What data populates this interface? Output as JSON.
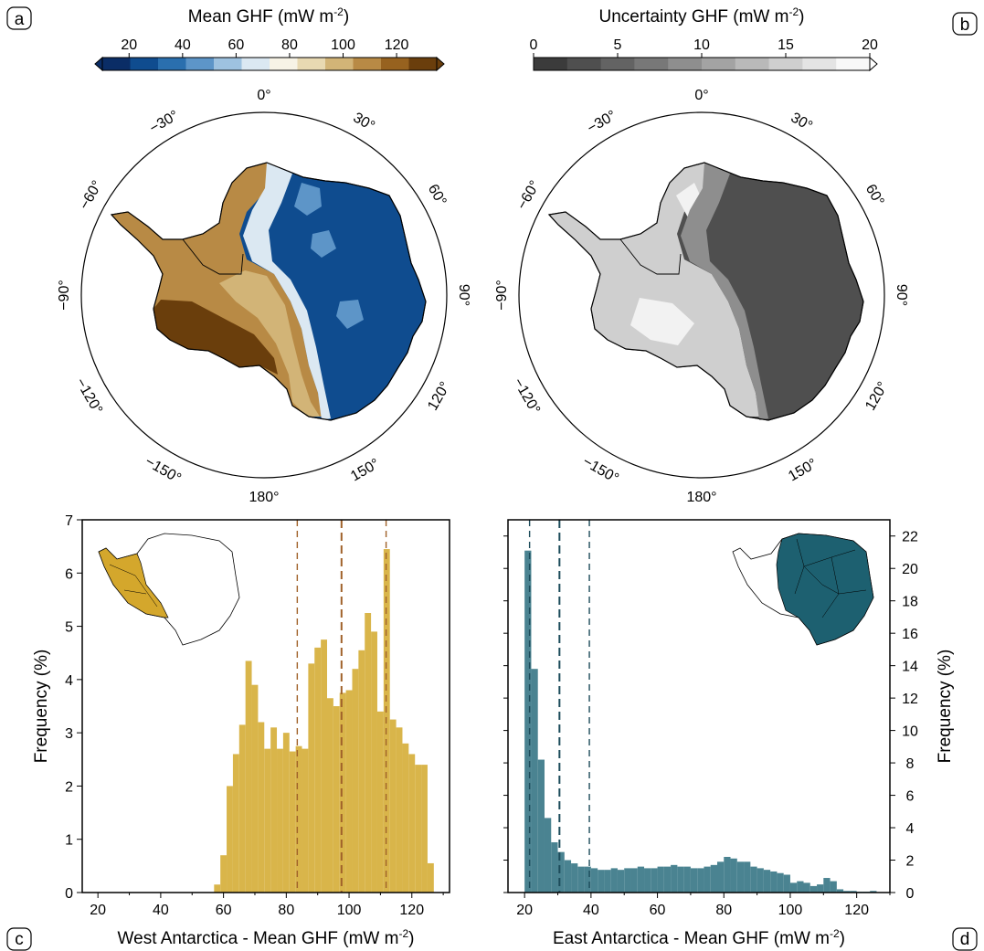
{
  "panels": {
    "a": "a",
    "b": "b",
    "c": "c",
    "d": "d"
  },
  "colorbars": [
    {
      "title": "Mean GHF (mW m",
      "title_sup": "-2",
      "title_end": ")",
      "ticks": [
        "20",
        "40",
        "60",
        "80",
        "100",
        "120"
      ],
      "tick_values": [
        20,
        40,
        60,
        80,
        100,
        120
      ],
      "range": [
        10,
        135
      ],
      "palette": [
        "#0a2d66",
        "#0f4c8f",
        "#2a6fae",
        "#5d95c8",
        "#9ec2e0",
        "#dbe8f2",
        "#f7f3e6",
        "#e8d9b2",
        "#d2b477",
        "#b88a45",
        "#97621f",
        "#6a3e0c"
      ]
    },
    {
      "title": "Uncertainty GHF (mW m",
      "title_sup": "-2",
      "title_end": ")",
      "ticks": [
        "0",
        "5",
        "10",
        "15",
        "20"
      ],
      "tick_values": [
        0,
        5,
        10,
        15,
        20
      ],
      "range": [
        0,
        20
      ],
      "palette": [
        "#3b3b3b",
        "#4f4f4f",
        "#636363",
        "#787878",
        "#8e8e8e",
        "#a3a3a3",
        "#b9b9b9",
        "#cfcfcf",
        "#e4e4e4",
        "#f8f8f8"
      ]
    }
  ],
  "maps": {
    "longitude_labels": [
      "0°",
      "30°",
      "60°",
      "90°",
      "120°",
      "150°",
      "180°",
      "−150°",
      "−120°",
      "−90°",
      "−60°",
      "−30°"
    ]
  },
  "colors": {
    "west_bar": "#d9b54a",
    "west_line": "#a0622a",
    "east_bar": "#4a8391",
    "east_line": "#1c4b5a",
    "west_inset": "#d4a72c",
    "east_inset": "#1d6070"
  },
  "chart_data": [
    {
      "type": "bar",
      "xlabel": "West Antarctica - Mean GHF (mW m",
      "xlabel_sup": "-2",
      "xlabel_end": ")",
      "ylabel": "Frequency (%)",
      "xlim": [
        15,
        132
      ],
      "ylim": [
        0,
        7
      ],
      "xticks": [
        20,
        40,
        60,
        80,
        100,
        120
      ],
      "yticks": [
        0,
        1,
        2,
        3,
        4,
        5,
        6,
        7
      ],
      "bin_width": 2,
      "bins_start": [
        57,
        59,
        61,
        63,
        65,
        67,
        69,
        71,
        73,
        75,
        77,
        79,
        81,
        83,
        85,
        87,
        89,
        91,
        93,
        95,
        97,
        99,
        101,
        103,
        105,
        107,
        109,
        111,
        113,
        115,
        117,
        119,
        121,
        123,
        125,
        127
      ],
      "values": [
        0.15,
        0.7,
        2.0,
        2.6,
        3.15,
        4.35,
        3.9,
        3.2,
        2.7,
        3.1,
        2.7,
        3.0,
        2.65,
        2.75,
        2.7,
        4.3,
        4.6,
        4.75,
        3.65,
        3.5,
        3.75,
        3.8,
        4.2,
        4.55,
        5.25,
        4.9,
        3.4,
        6.45,
        3.25,
        3.1,
        2.8,
        2.6,
        2.4,
        2.4,
        0.55,
        0
      ],
      "vlines": [
        83.5,
        97.6,
        111.8
      ]
    },
    {
      "type": "bar",
      "xlabel": "East Antarctica - Mean GHF (mW m",
      "xlabel_sup": "-2",
      "xlabel_end": ")",
      "ylabel": "Frequency (%)",
      "xlim": [
        15,
        130
      ],
      "ylim": [
        0,
        23
      ],
      "xticks": [
        20,
        40,
        60,
        80,
        100,
        120
      ],
      "yticks": [
        0,
        2,
        4,
        6,
        8,
        10,
        12,
        14,
        16,
        18,
        20,
        22
      ],
      "bin_width": 2,
      "bins_start": [
        20,
        22,
        24,
        26,
        28,
        30,
        32,
        34,
        36,
        38,
        40,
        42,
        44,
        46,
        48,
        50,
        52,
        54,
        56,
        58,
        60,
        62,
        64,
        66,
        68,
        70,
        72,
        74,
        76,
        78,
        80,
        82,
        84,
        86,
        88,
        90,
        92,
        94,
        96,
        98,
        100,
        102,
        104,
        106,
        108,
        110,
        112,
        114,
        116,
        118,
        120,
        122,
        124
      ],
      "values": [
        21.1,
        13.8,
        8.2,
        4.6,
        3.1,
        2.5,
        2.0,
        1.8,
        1.6,
        1.6,
        1.5,
        1.4,
        1.4,
        1.5,
        1.4,
        1.5,
        1.5,
        1.6,
        1.5,
        1.5,
        1.6,
        1.6,
        1.7,
        1.6,
        1.6,
        1.5,
        1.5,
        1.6,
        1.7,
        1.9,
        2.2,
        2.1,
        1.9,
        1.9,
        1.6,
        1.5,
        1.4,
        1.3,
        1.2,
        1.1,
        0.6,
        0.7,
        0.6,
        0.4,
        0.5,
        0.9,
        0.7,
        0.2,
        0.1,
        0.1,
        0.05,
        0.05,
        0.1
      ],
      "vlines": [
        21.5,
        30.5,
        39.5
      ]
    }
  ]
}
